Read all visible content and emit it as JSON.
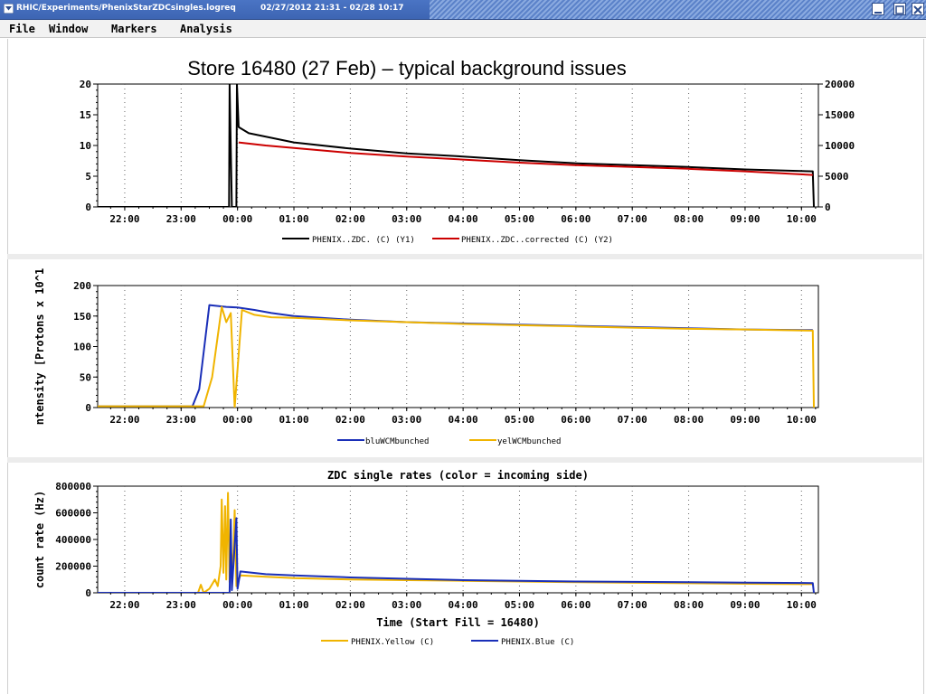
{
  "window": {
    "title": "RHIC/Experiments/PhenixStarZDCsingles.logreq",
    "date_range": "02/27/2012 21:31 - 02/28 10:17",
    "icons": {
      "menu": "chevron-down-icon",
      "minimize": "minimize-icon",
      "maximize": "maximize-icon",
      "close": "close-icon"
    }
  },
  "menu": [
    "File",
    "Window",
    "Markers",
    "Analysis"
  ],
  "slide_title": "Store 16480 (27 Feb) – typical background issues",
  "chart_data": [
    {
      "type": "line",
      "title": "",
      "xlabel": "",
      "ylabel": "",
      "x_ticks": [
        "22:00",
        "23:00",
        "00:00",
        "01:00",
        "02:00",
        "03:00",
        "04:00",
        "05:00",
        "06:00",
        "07:00",
        "08:00",
        "09:00",
        "10:00"
      ],
      "x_unit": "hours since 21:00",
      "xlim": [
        0.52,
        13.3
      ],
      "ylim": [
        0,
        20
      ],
      "y_ticks": [
        0,
        5,
        10,
        15,
        20
      ],
      "y2lim": [
        0,
        20000
      ],
      "y2_ticks": [
        0,
        5000,
        10000,
        15000,
        20000
      ],
      "grid": "vertical-dotted",
      "legend": "bottom",
      "series": [
        {
          "name": "PHENIX..ZDC. (C) (Y1)",
          "color": "#000000",
          "axis": "y1",
          "points": [
            [
              0.52,
              0
            ],
            [
              2.85,
              0
            ],
            [
              2.86,
              20
            ],
            [
              2.9,
              0
            ],
            [
              2.98,
              0
            ],
            [
              2.99,
              20
            ],
            [
              3.02,
              13.0
            ],
            [
              3.2,
              12.0
            ],
            [
              4,
              10.5
            ],
            [
              5,
              9.5
            ],
            [
              6,
              8.7
            ],
            [
              7,
              8.2
            ],
            [
              8,
              7.6
            ],
            [
              9,
              7.1
            ],
            [
              10,
              6.8
            ],
            [
              11,
              6.5
            ],
            [
              12,
              6.1
            ],
            [
              13.2,
              5.8
            ],
            [
              13.22,
              0
            ]
          ]
        },
        {
          "name": "PHENIX..ZDC..corrected (C) (Y2)",
          "color": "#cc0000",
          "axis": "y2",
          "points": [
            [
              3.02,
              10500
            ],
            [
              3.5,
              10000
            ],
            [
              4,
              9600
            ],
            [
              5,
              8800
            ],
            [
              6,
              8200
            ],
            [
              7,
              7700
            ],
            [
              8,
              7200
            ],
            [
              9,
              6800
            ],
            [
              10,
              6500
            ],
            [
              11,
              6200
            ],
            [
              12,
              5800
            ],
            [
              13.2,
              5200
            ]
          ]
        }
      ]
    },
    {
      "type": "line",
      "title": "",
      "xlabel": "",
      "ylabel": "ntensity [Protons x 10^1",
      "x_ticks": [
        "22:00",
        "23:00",
        "00:00",
        "01:00",
        "02:00",
        "03:00",
        "04:00",
        "05:00",
        "06:00",
        "07:00",
        "08:00",
        "09:00",
        "10:00"
      ],
      "x_unit": "hours since 21:00",
      "xlim": [
        0.52,
        13.3
      ],
      "ylim": [
        0,
        200
      ],
      "y_ticks": [
        0,
        50,
        100,
        150,
        200
      ],
      "grid": "vertical-dotted",
      "legend": "bottom",
      "series": [
        {
          "name": "bluWCMbunched",
          "color": "#1a2fb8",
          "points": [
            [
              0.52,
              2
            ],
            [
              2.2,
              2
            ],
            [
              2.32,
              30
            ],
            [
              2.5,
              168
            ],
            [
              2.8,
              165
            ],
            [
              3.0,
              164
            ],
            [
              3.3,
              160
            ],
            [
              3.6,
              155
            ],
            [
              4,
              150
            ],
            [
              5,
              144
            ],
            [
              6,
              140
            ],
            [
              7,
              138
            ],
            [
              8,
              136
            ],
            [
              9,
              134
            ],
            [
              10,
              132
            ],
            [
              11,
              130
            ],
            [
              12,
              128
            ],
            [
              13.1,
              127
            ],
            [
              13.2,
              127
            ]
          ]
        },
        {
          "name": "yelWCMbunched",
          "color": "#f0b400",
          "points": [
            [
              0.52,
              2
            ],
            [
              2.4,
              2
            ],
            [
              2.55,
              50
            ],
            [
              2.72,
              165
            ],
            [
              2.8,
              140
            ],
            [
              2.88,
              155
            ],
            [
              2.95,
              0
            ],
            [
              3.08,
              160
            ],
            [
              3.3,
              152
            ],
            [
              3.6,
              148
            ],
            [
              4,
              147
            ],
            [
              5,
              143
            ],
            [
              6,
              140
            ],
            [
              7,
              137
            ],
            [
              8,
              135
            ],
            [
              9,
              133
            ],
            [
              10,
              131
            ],
            [
              11,
              129
            ],
            [
              12,
              128
            ],
            [
              13.2,
              126
            ],
            [
              13.22,
              0
            ]
          ]
        }
      ]
    },
    {
      "type": "line",
      "title": "ZDC single rates (color  = incoming side)",
      "xlabel": "Time (Start Fill = 16480)",
      "ylabel": "count rate (Hz)",
      "x_ticks": [
        "22:00",
        "23:00",
        "00:00",
        "01:00",
        "02:00",
        "03:00",
        "04:00",
        "05:00",
        "06:00",
        "07:00",
        "08:00",
        "09:00",
        "10:00"
      ],
      "x_unit": "hours since 21:00",
      "xlim": [
        0.52,
        13.3
      ],
      "ylim": [
        0,
        800000
      ],
      "y_ticks": [
        0,
        200000,
        400000,
        600000,
        800000
      ],
      "grid": "vertical-dotted",
      "legend": "bottom",
      "series": [
        {
          "name": "PHENIX.Yellow (C)",
          "color": "#f0b400",
          "points": [
            [
              0.52,
              0
            ],
            [
              2.3,
              0
            ],
            [
              2.35,
              60000
            ],
            [
              2.4,
              0
            ],
            [
              2.5,
              30000
            ],
            [
              2.6,
              100000
            ],
            [
              2.65,
              50000
            ],
            [
              2.7,
              200000
            ],
            [
              2.72,
              700000
            ],
            [
              2.75,
              150000
            ],
            [
              2.78,
              650000
            ],
            [
              2.8,
              100000
            ],
            [
              2.83,
              750000
            ],
            [
              2.86,
              80000
            ],
            [
              2.88,
              320000
            ],
            [
              2.92,
              200000
            ],
            [
              2.95,
              620000
            ],
            [
              2.98,
              50000
            ],
            [
              3.05,
              130000
            ],
            [
              3.5,
              120000
            ],
            [
              4,
              110000
            ],
            [
              5,
              100000
            ],
            [
              6,
              95000
            ],
            [
              7,
              90000
            ],
            [
              8,
              85000
            ],
            [
              9,
              80000
            ],
            [
              10,
              75000
            ],
            [
              11,
              72000
            ],
            [
              12,
              68000
            ],
            [
              13.2,
              65000
            ]
          ]
        },
        {
          "name": "PHENIX.Blue (C)",
          "color": "#1a2fb8",
          "points": [
            [
              0.52,
              0
            ],
            [
              2.86,
              0
            ],
            [
              2.88,
              550000
            ],
            [
              2.9,
              20000
            ],
            [
              2.98,
              560000
            ],
            [
              3.0,
              30000
            ],
            [
              3.05,
              160000
            ],
            [
              3.5,
              140000
            ],
            [
              4,
              130000
            ],
            [
              5,
              115000
            ],
            [
              6,
              105000
            ],
            [
              7,
              95000
            ],
            [
              8,
              90000
            ],
            [
              9,
              85000
            ],
            [
              10,
              82000
            ],
            [
              11,
              80000
            ],
            [
              12,
              76000
            ],
            [
              13.2,
              73000
            ],
            [
              13.22,
              0
            ]
          ]
        }
      ]
    }
  ]
}
